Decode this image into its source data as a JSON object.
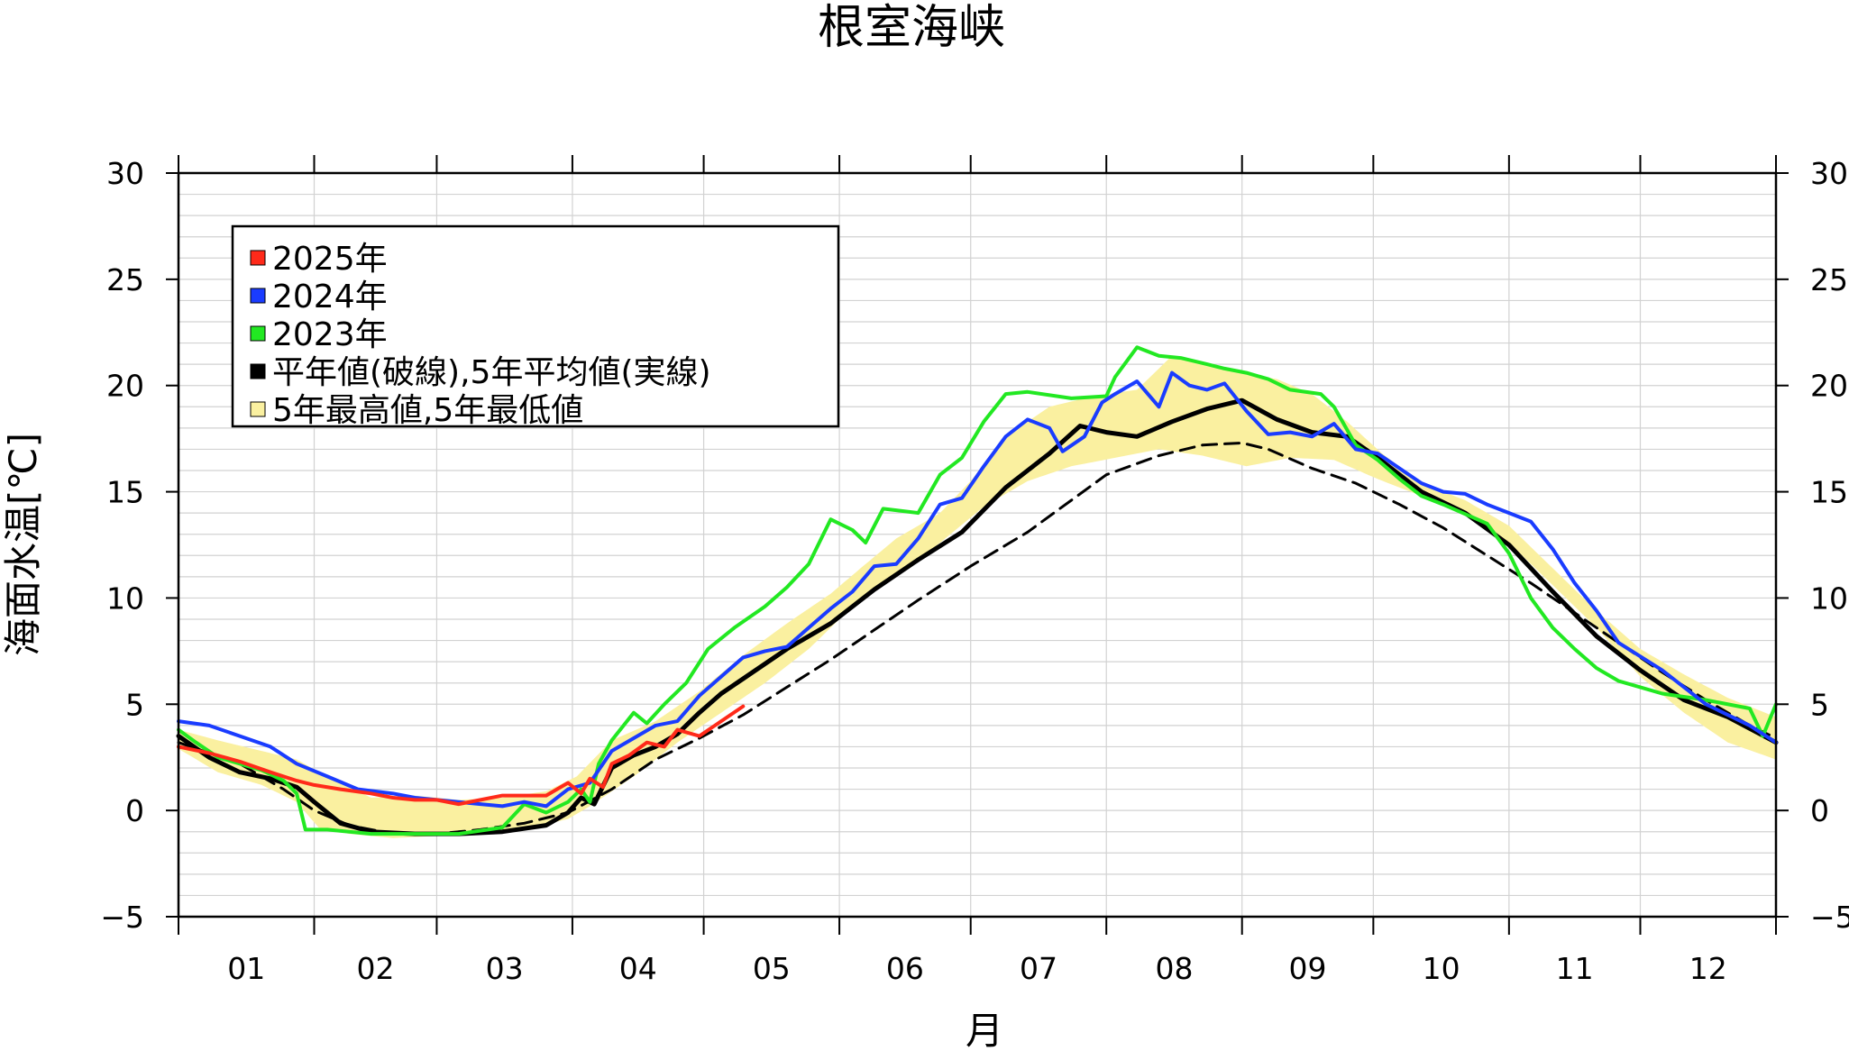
{
  "chart_data": {
    "type": "line",
    "title": "根室海峡",
    "xlabel": "月",
    "ylabel": "海面水温[℃]",
    "ylim": [
      -5,
      30
    ],
    "xlim": [
      1,
      366
    ],
    "y_ticks": [
      "−5",
      "0",
      "5",
      "10",
      "15",
      "20",
      "25",
      "30"
    ],
    "y_tick_values": [
      -5,
      0,
      5,
      10,
      15,
      20,
      25,
      30
    ],
    "month_labels": [
      "01",
      "02",
      "03",
      "04",
      "05",
      "06",
      "07",
      "08",
      "09",
      "10",
      "11",
      "12"
    ],
    "month_starts": [
      1,
      32,
      60,
      91,
      121,
      152,
      182,
      213,
      244,
      274,
      305,
      335
    ],
    "grid": true,
    "legend_position": "top-left",
    "colors": {
      "y2025": "#ff2a1a",
      "y2024": "#1a3cff",
      "y2023": "#22e822",
      "normal": "#000000",
      "range_fill": "#faf0a0"
    },
    "legend": [
      {
        "label": "2025年",
        "color": "#ff2a1a"
      },
      {
        "label": "2024年",
        "color": "#1a3cff"
      },
      {
        "label": "2023年",
        "color": "#22e822"
      },
      {
        "label": "平年値(破線),5年平均値(実線)",
        "color": "#000000"
      },
      {
        "label": "5年最高値,5年最低値",
        "color": "#faf0a0"
      }
    ],
    "range_upper": {
      "x": [
        1,
        10,
        20,
        28,
        35,
        45,
        55,
        65,
        75,
        85,
        92,
        100,
        110,
        120,
        130,
        140,
        150,
        158,
        165,
        175,
        182,
        190,
        200,
        210,
        220,
        228,
        236,
        244,
        252,
        260,
        268,
        276,
        285,
        295,
        305,
        315,
        325,
        335,
        345,
        355,
        366
      ],
      "values": [
        3.8,
        3.3,
        2.8,
        2.4,
        1.6,
        0.6,
        0.7,
        0.5,
        0.6,
        0.9,
        1.6,
        3.3,
        4.2,
        5.6,
        7.3,
        8.8,
        10.2,
        11.6,
        12.8,
        14.0,
        15.5,
        17.6,
        19.0,
        19.5,
        19.8,
        21.4,
        21.0,
        20.6,
        20.3,
        19.6,
        18.3,
        16.8,
        15.4,
        14.6,
        13.4,
        11.4,
        9.4,
        7.6,
        6.4,
        5.3,
        4.4
      ]
    },
    "range_lower": {
      "x": [
        1,
        10,
        20,
        28,
        33,
        40,
        50,
        60,
        70,
        80,
        90,
        95,
        105,
        115,
        125,
        135,
        145,
        155,
        165,
        175,
        185,
        195,
        205,
        215,
        225,
        235,
        245,
        255,
        265,
        275,
        285,
        295,
        305,
        315,
        325,
        335,
        345,
        355,
        366
      ],
      "values": [
        2.9,
        1.8,
        1.2,
        0.4,
        -0.8,
        -1.1,
        -1.3,
        -1.2,
        -1.1,
        -0.9,
        -0.4,
        0.2,
        1.6,
        3.2,
        4.6,
        6.0,
        7.6,
        9.6,
        11.0,
        12.6,
        14.3,
        15.5,
        16.2,
        16.6,
        17.0,
        16.7,
        16.2,
        16.6,
        16.5,
        15.6,
        14.8,
        13.9,
        12.6,
        10.6,
        8.6,
        6.3,
        4.6,
        3.2,
        2.4
      ]
    },
    "series": [
      {
        "name": "平年値",
        "style": "dashed",
        "color": "#000000",
        "x": [
          1,
          15,
          25,
          32,
          40,
          50,
          60,
          70,
          80,
          90,
          100,
          110,
          120,
          130,
          140,
          150,
          160,
          170,
          182,
          195,
          205,
          213,
          225,
          235,
          244,
          250,
          260,
          270,
          280,
          290,
          300,
          310,
          320,
          330,
          340,
          350,
          360,
          366
        ],
        "values": [
          3.2,
          2.2,
          1.0,
          0.0,
          -0.7,
          -1.1,
          -1.1,
          -0.9,
          -0.6,
          -0.1,
          1.0,
          2.4,
          3.4,
          4.5,
          5.8,
          7.1,
          8.5,
          9.9,
          11.5,
          13.1,
          14.6,
          15.8,
          16.7,
          17.2,
          17.3,
          17.0,
          16.1,
          15.4,
          14.4,
          13.3,
          12.0,
          10.7,
          9.3,
          7.9,
          6.5,
          5.2,
          4.0,
          3.4
        ]
      },
      {
        "name": "5年平均値",
        "style": "solid",
        "color": "#000000",
        "x": [
          1,
          8,
          15,
          22,
          28,
          32,
          38,
          45,
          55,
          65,
          75,
          85,
          90,
          93,
          96,
          100,
          105,
          110,
          115,
          120,
          125,
          130,
          140,
          150,
          160,
          170,
          180,
          190,
          200,
          207,
          213,
          220,
          228,
          236,
          244,
          252,
          260,
          268,
          275,
          285,
          295,
          305,
          315,
          325,
          335,
          345,
          355,
          366
        ],
        "values": [
          3.5,
          2.5,
          1.8,
          1.5,
          1.1,
          0.4,
          -0.6,
          -1.0,
          -1.1,
          -1.1,
          -1.0,
          -0.7,
          -0.1,
          0.6,
          0.3,
          2.0,
          2.6,
          3.0,
          3.6,
          4.6,
          5.5,
          6.2,
          7.6,
          8.8,
          10.4,
          11.8,
          13.1,
          15.2,
          16.8,
          18.1,
          17.8,
          17.6,
          18.3,
          18.9,
          19.3,
          18.4,
          17.8,
          17.6,
          16.6,
          15.0,
          14.0,
          12.5,
          10.3,
          8.2,
          6.6,
          5.2,
          4.4,
          3.2
        ]
      },
      {
        "name": "2023年",
        "color": "#22e822",
        "x": [
          1,
          5,
          10,
          15,
          20,
          25,
          28,
          30,
          35,
          45,
          55,
          65,
          75,
          80,
          85,
          90,
          93,
          95,
          97,
          100,
          105,
          108,
          112,
          117,
          122,
          128,
          135,
          140,
          145,
          150,
          155,
          158,
          162,
          170,
          175,
          180,
          185,
          190,
          195,
          205,
          213,
          215,
          220,
          225,
          230,
          236,
          240,
          245,
          250,
          255,
          262,
          265,
          270,
          275,
          280,
          285,
          290,
          300,
          305,
          310,
          315,
          320,
          325,
          330,
          340,
          350,
          360,
          363,
          366
        ],
        "values": [
          3.8,
          3.2,
          2.5,
          2.2,
          1.9,
          1.4,
          0.8,
          -0.9,
          -0.9,
          -1.1,
          -1.1,
          -1.1,
          -0.8,
          0.3,
          -0.1,
          0.4,
          1.0,
          0.4,
          2.2,
          3.3,
          4.6,
          4.1,
          5.0,
          6.0,
          7.6,
          8.6,
          9.6,
          10.5,
          11.6,
          13.7,
          13.2,
          12.6,
          14.2,
          14.0,
          15.8,
          16.6,
          18.3,
          19.6,
          19.7,
          19.4,
          19.5,
          20.4,
          21.8,
          21.4,
          21.3,
          21.0,
          20.8,
          20.6,
          20.3,
          19.8,
          19.6,
          19.0,
          17.2,
          16.5,
          15.6,
          14.8,
          14.4,
          13.5,
          12.1,
          10.0,
          8.6,
          7.6,
          6.7,
          6.1,
          5.5,
          5.2,
          4.8,
          3.5,
          5.0
        ]
      },
      {
        "name": "2024年",
        "color": "#1a3cff",
        "x": [
          1,
          8,
          15,
          22,
          28,
          35,
          42,
          50,
          55,
          60,
          65,
          70,
          75,
          80,
          85,
          90,
          95,
          100,
          105,
          110,
          115,
          120,
          125,
          130,
          135,
          140,
          145,
          150,
          155,
          160,
          165,
          170,
          175,
          180,
          185,
          190,
          195,
          200,
          203,
          208,
          212,
          215,
          220,
          225,
          228,
          232,
          236,
          240,
          245,
          250,
          255,
          260,
          265,
          270,
          275,
          280,
          285,
          290,
          295,
          300,
          305,
          310,
          315,
          320,
          325,
          330,
          340,
          350,
          360,
          366
        ],
        "values": [
          4.2,
          4.0,
          3.5,
          3.0,
          2.2,
          1.6,
          1.0,
          0.8,
          0.6,
          0.5,
          0.4,
          0.3,
          0.2,
          0.4,
          0.2,
          1.0,
          1.3,
          2.8,
          3.4,
          4.0,
          4.2,
          5.4,
          6.3,
          7.2,
          7.5,
          7.7,
          8.6,
          9.5,
          10.3,
          11.5,
          11.6,
          12.8,
          14.4,
          14.7,
          16.2,
          17.6,
          18.4,
          18.0,
          16.9,
          17.6,
          19.2,
          19.6,
          20.2,
          19.0,
          20.6,
          20.0,
          19.8,
          20.1,
          18.8,
          17.7,
          17.8,
          17.6,
          18.2,
          17.0,
          16.8,
          16.1,
          15.4,
          15.0,
          14.9,
          14.4,
          14.0,
          13.6,
          12.3,
          10.7,
          9.4,
          7.9,
          6.6,
          5.0,
          4.0,
          3.2
        ]
      },
      {
        "name": "2025年",
        "color": "#ff2a1a",
        "x": [
          1,
          8,
          15,
          22,
          28,
          32,
          38,
          45,
          50,
          55,
          60,
          65,
          70,
          75,
          80,
          85,
          90,
          93,
          95,
          98,
          100,
          104,
          108,
          112,
          115,
          120,
          125,
          130
        ],
        "values": [
          3.0,
          2.7,
          2.3,
          1.8,
          1.4,
          1.2,
          1.0,
          0.8,
          0.6,
          0.5,
          0.5,
          0.3,
          0.5,
          0.7,
          0.7,
          0.7,
          1.3,
          0.8,
          1.5,
          1.1,
          2.2,
          2.6,
          3.2,
          3.0,
          3.8,
          3.5,
          4.2,
          4.9
        ]
      }
    ]
  }
}
